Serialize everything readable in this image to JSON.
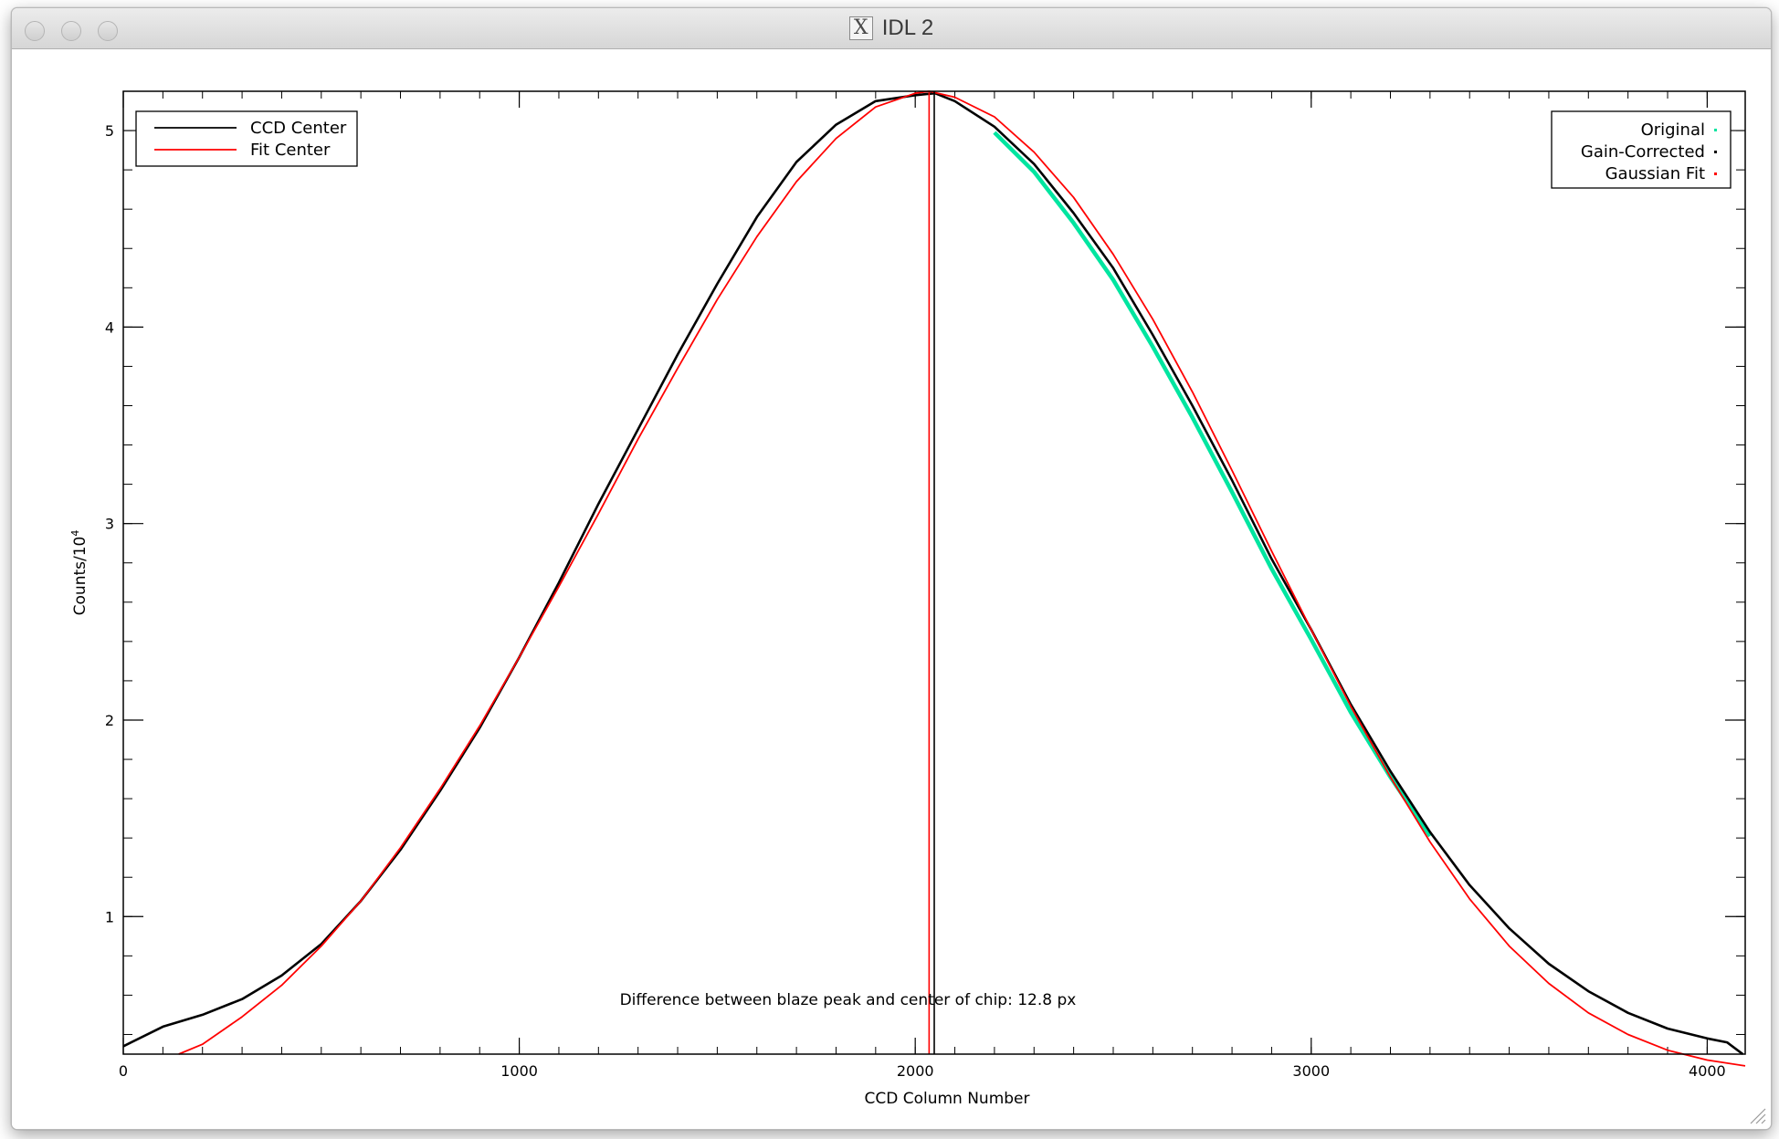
{
  "window": {
    "title": "IDL 2",
    "title_icon": "x11-icon",
    "title_icon_glyph": "X"
  },
  "chart_data": {
    "type": "line",
    "title": "",
    "xlabel": "CCD Column Number",
    "ylabel": "Counts/10",
    "ylabel_exponent": "4",
    "xlim": [
      0,
      4096
    ],
    "ylim": [
      0.3,
      5.2
    ],
    "x_ticks": [
      {
        "value": 0,
        "label": "0"
      },
      {
        "value": 1000,
        "label": "1000"
      },
      {
        "value": 2000,
        "label": "2000"
      },
      {
        "value": 3000,
        "label": "3000"
      },
      {
        "value": 4000,
        "label": "4000"
      }
    ],
    "y_ticks": [
      {
        "value": 1,
        "label": "1"
      },
      {
        "value": 2,
        "label": "2"
      },
      {
        "value": 3,
        "label": "3"
      },
      {
        "value": 4,
        "label": "4"
      },
      {
        "value": 5,
        "label": "5"
      }
    ],
    "x_minor_step": 100,
    "y_minor_step": 0.2,
    "annotation": "Difference between blaze peak and center of chip: 12.8 px",
    "legend_left": {
      "position": "top-left",
      "entries": [
        {
          "label": "CCD Center",
          "color": "#000000"
        },
        {
          "label": "Fit Center",
          "color": "#ff0000"
        }
      ]
    },
    "legend_right": {
      "position": "top-right",
      "entries": [
        {
          "label": "Original",
          "color": "#00e5a0"
        },
        {
          "label": "Gain-Corrected",
          "color": "#000000"
        },
        {
          "label": "Gaussian Fit",
          "color": "#ff0000"
        }
      ]
    },
    "vertical_lines": [
      {
        "name": "CCD Center",
        "x": 2048,
        "color": "#000000"
      },
      {
        "name": "Fit Center",
        "x": 2035,
        "color": "#ff0000"
      }
    ],
    "series": [
      {
        "name": "Gain-Corrected",
        "color": "#000000",
        "x": [
          0,
          100,
          200,
          300,
          400,
          500,
          600,
          700,
          800,
          900,
          1000,
          1100,
          1200,
          1300,
          1400,
          1500,
          1600,
          1700,
          1800,
          1900,
          2000,
          2050,
          2100,
          2200,
          2300,
          2400,
          2500,
          2600,
          2700,
          2800,
          2900,
          3000,
          3100,
          3200,
          3300,
          3400,
          3500,
          3600,
          3700,
          3800,
          3900,
          4000,
          4050,
          4090
        ],
        "y": [
          0.34,
          0.44,
          0.5,
          0.58,
          0.7,
          0.86,
          1.08,
          1.34,
          1.64,
          1.96,
          2.32,
          2.7,
          3.1,
          3.48,
          3.86,
          4.22,
          4.56,
          4.84,
          5.03,
          5.15,
          5.18,
          5.19,
          5.15,
          5.02,
          4.83,
          4.58,
          4.3,
          3.96,
          3.6,
          3.22,
          2.82,
          2.46,
          2.08,
          1.74,
          1.43,
          1.16,
          0.94,
          0.76,
          0.62,
          0.51,
          0.43,
          0.38,
          0.36,
          0.3
        ]
      },
      {
        "name": "Gaussian Fit",
        "color": "#ff0000",
        "x": [
          140,
          200,
          300,
          400,
          500,
          600,
          700,
          800,
          900,
          1000,
          1100,
          1200,
          1300,
          1400,
          1500,
          1600,
          1700,
          1800,
          1900,
          2000,
          2035,
          2100,
          2200,
          2300,
          2400,
          2500,
          2600,
          2700,
          2800,
          2900,
          3000,
          3100,
          3200,
          3300,
          3400,
          3500,
          3600,
          3700,
          3800,
          3900,
          4000,
          4096
        ],
        "y": [
          0.3,
          0.35,
          0.49,
          0.65,
          0.85,
          1.08,
          1.35,
          1.65,
          1.97,
          2.32,
          2.68,
          3.05,
          3.43,
          3.79,
          4.14,
          4.46,
          4.74,
          4.96,
          5.12,
          5.19,
          5.2,
          5.17,
          5.07,
          4.89,
          4.66,
          4.37,
          4.04,
          3.67,
          3.27,
          2.86,
          2.46,
          2.07,
          1.71,
          1.38,
          1.09,
          0.85,
          0.66,
          0.51,
          0.4,
          0.32,
          0.27,
          0.24
        ]
      },
      {
        "name": "Original",
        "color": "#00e5a0",
        "x": [
          2200,
          2300,
          2400,
          2500,
          2600,
          2700,
          2800,
          2900,
          3000,
          3100,
          3200,
          3300
        ],
        "y": [
          4.99,
          4.79,
          4.53,
          4.24,
          3.9,
          3.54,
          3.16,
          2.77,
          2.41,
          2.04,
          1.71,
          1.41
        ]
      }
    ]
  }
}
